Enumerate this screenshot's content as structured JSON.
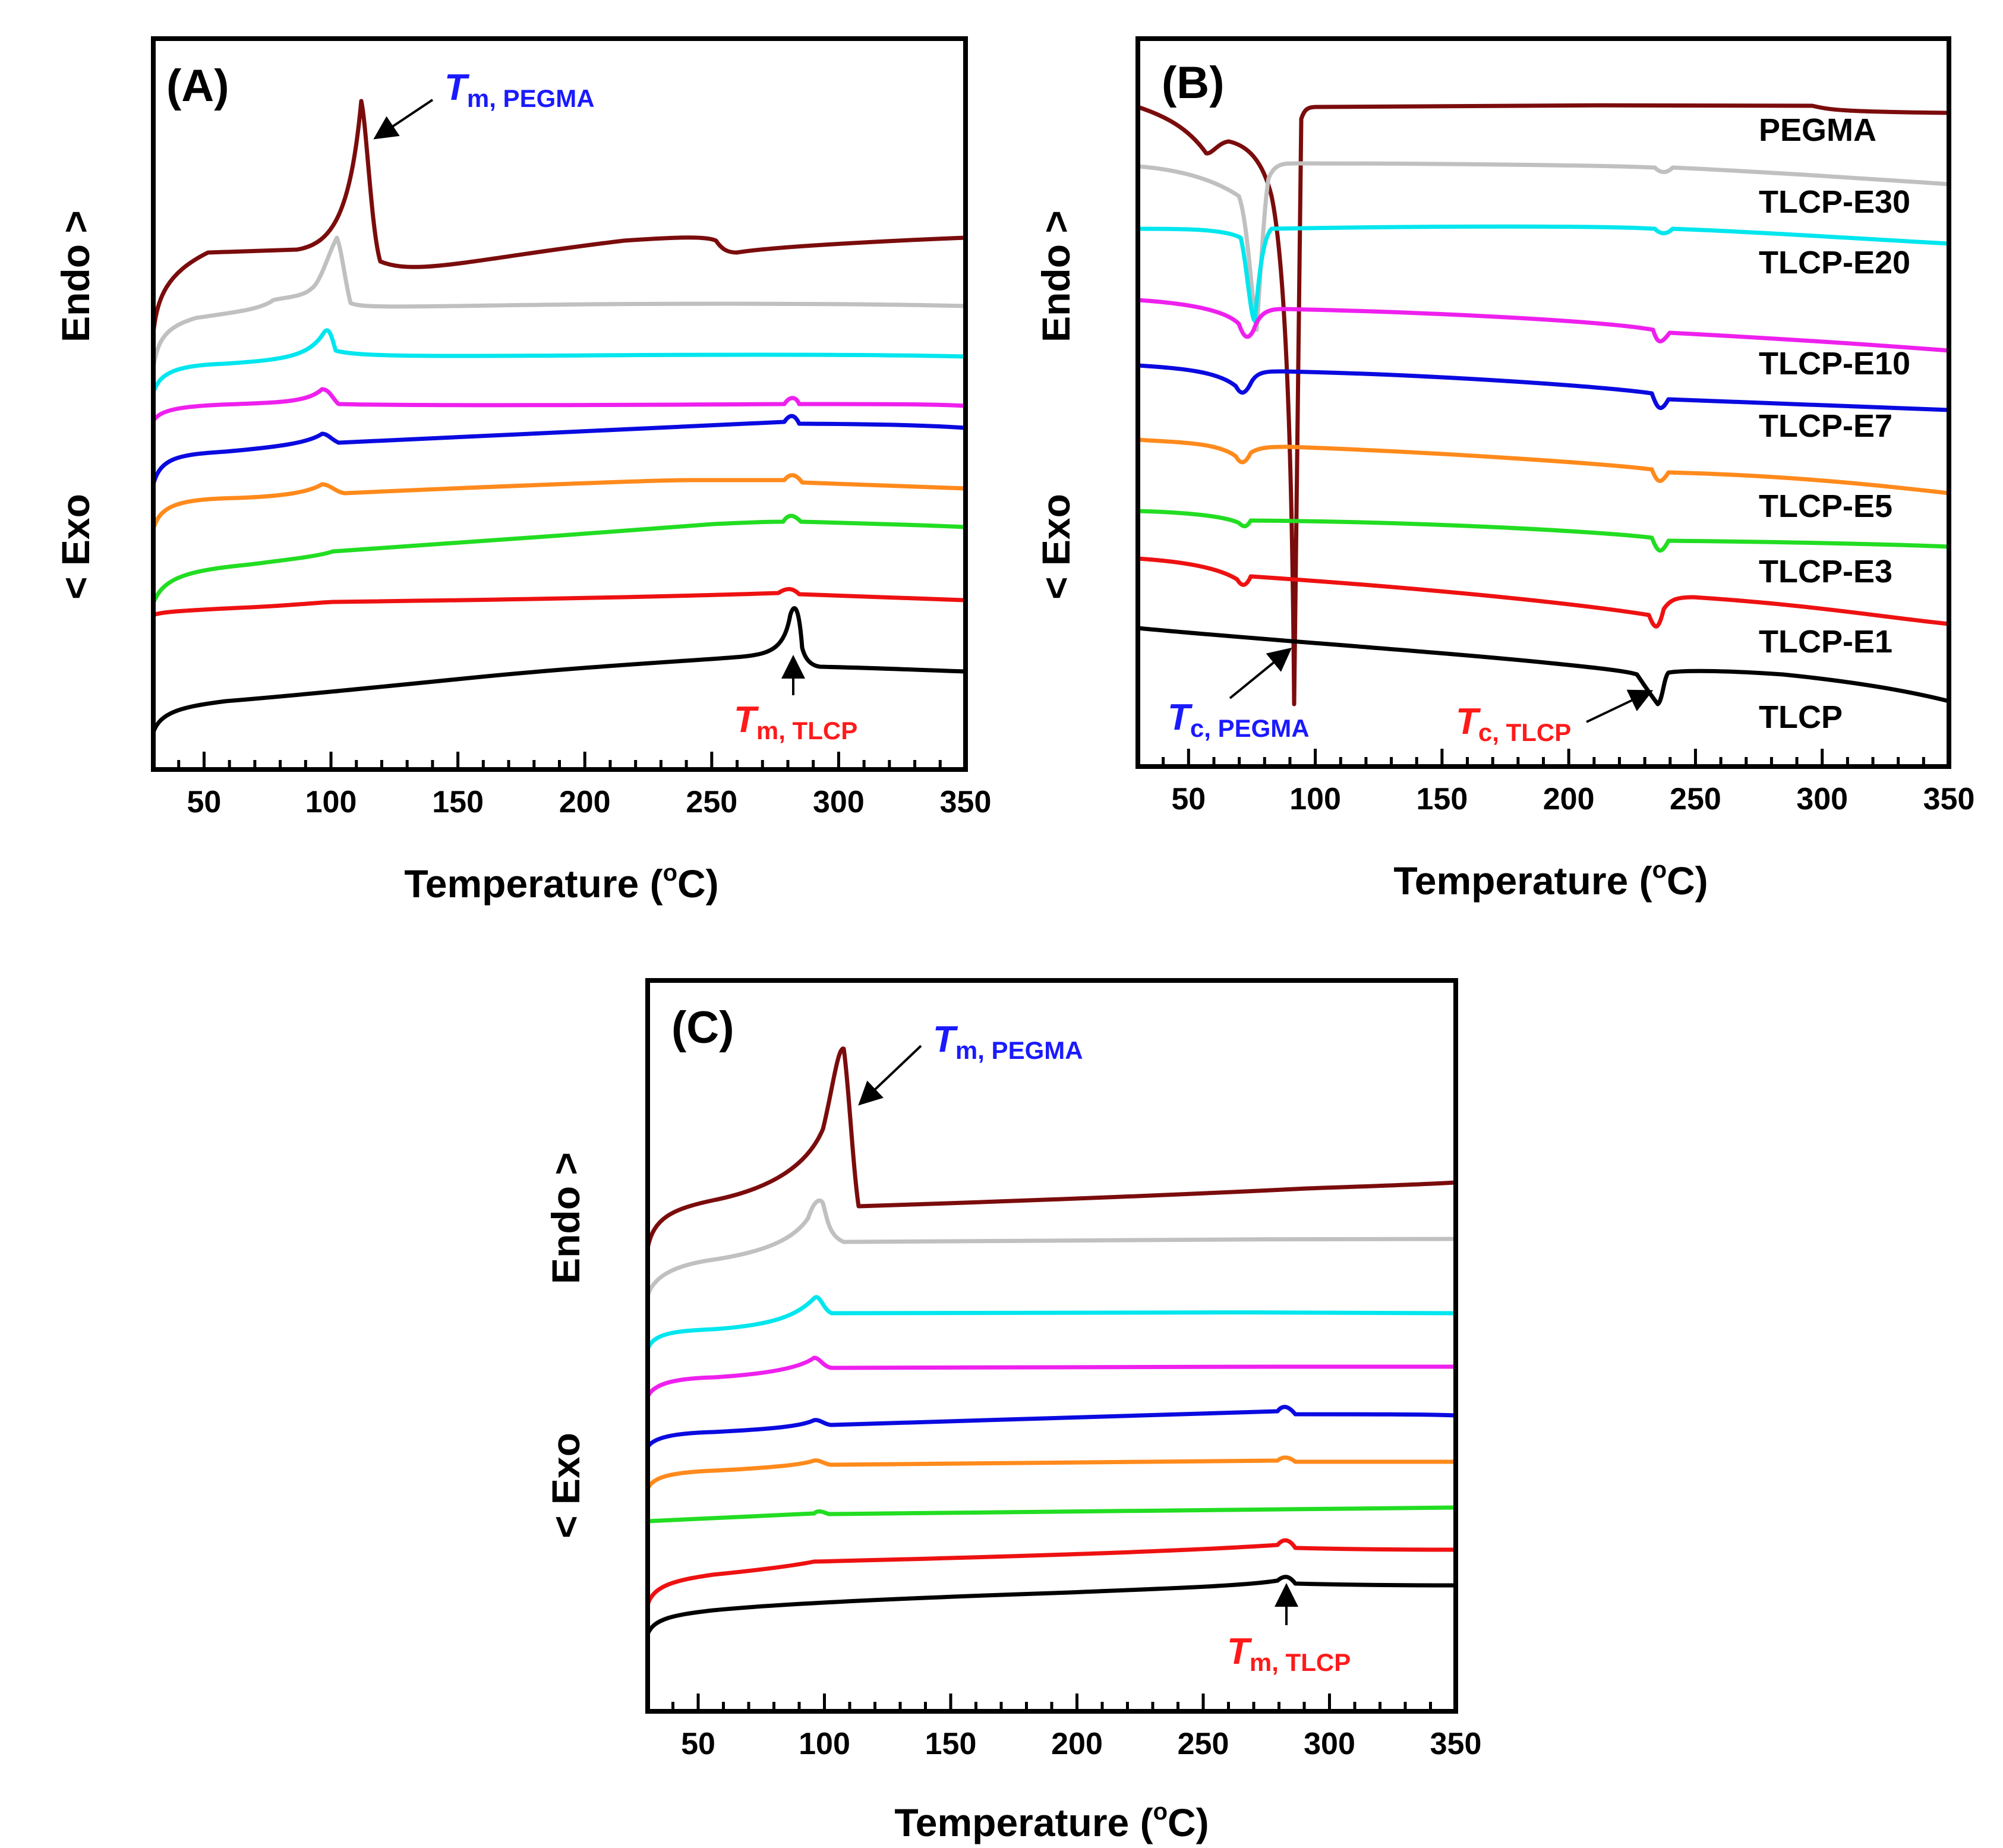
{
  "chart_data": [
    {
      "type": "line",
      "panel_label": "(A)",
      "xlabel_prefix": "Temperature (",
      "xlabel_sup": "o",
      "xlabel_suffix": "C)",
      "ylabel_top": "Endo >",
      "ylabel_bottom": "< Exo",
      "xlim": [
        30,
        350
      ],
      "xticks": [
        "50",
        "100",
        "150",
        "200",
        "250",
        "300",
        "350"
      ],
      "series_colors": [
        "#7b0c0c",
        "#c0c0c0",
        "#00e6ee",
        "#ee20ee",
        "#0a0ae0",
        "#ff8a1c",
        "#22dd22",
        "#ee1111",
        "#000000"
      ],
      "series_names": [
        "PEGMA",
        "TLCP-E30",
        "TLCP-E20",
        "TLCP-E10",
        "TLCP-E7",
        "TLCP-E5",
        "TLCP-E3",
        "TLCP-E1",
        "TLCP"
      ],
      "annotations": [
        {
          "main": "T",
          "sub": "m, PEGMA",
          "color": "#1a1aff"
        },
        {
          "main": "T",
          "sub": "m, TLCP",
          "color": "#ff1a1a"
        }
      ]
    },
    {
      "type": "line",
      "panel_label": "(B)",
      "xlabel_prefix": "Temperature (",
      "xlabel_sup": "o",
      "xlabel_suffix": "C)",
      "ylabel_top": "Endo >",
      "ylabel_bottom": "< Exo",
      "xlim": [
        30,
        350
      ],
      "xticks": [
        "50",
        "100",
        "150",
        "200",
        "250",
        "300",
        "350"
      ],
      "series_colors": [
        "#7b0c0c",
        "#c0c0c0",
        "#00e6ee",
        "#ee20ee",
        "#0a0ae0",
        "#ff8a1c",
        "#22dd22",
        "#ee1111",
        "#000000"
      ],
      "legend": [
        "PEGMA",
        "TLCP-E30",
        "TLCP-E20",
        "TLCP-E10",
        "TLCP-E7",
        "TLCP-E5",
        "TLCP-E3",
        "TLCP-E1",
        "TLCP"
      ],
      "annotations": [
        {
          "main": "T",
          "sub": "c, PEGMA",
          "color": "#1a1aff"
        },
        {
          "main": "T",
          "sub": "c, TLCP",
          "color": "#ff1a1a"
        }
      ]
    },
    {
      "type": "line",
      "panel_label": "(C)",
      "xlabel_prefix": "Temperature (",
      "xlabel_sup": "o",
      "xlabel_suffix": "C)",
      "ylabel_top": "Endo >",
      "ylabel_bottom": "< Exo",
      "xlim": [
        30,
        350
      ],
      "xticks": [
        "50",
        "100",
        "150",
        "200",
        "250",
        "300",
        "350"
      ],
      "series_colors": [
        "#7b0c0c",
        "#c0c0c0",
        "#00e6ee",
        "#ee20ee",
        "#0a0ae0",
        "#ff8a1c",
        "#22dd22",
        "#ee1111",
        "#000000"
      ],
      "series_names": [
        "PEGMA",
        "TLCP-E30",
        "TLCP-E20",
        "TLCP-E10",
        "TLCP-E7",
        "TLCP-E5",
        "TLCP-E3",
        "TLCP-E1",
        "TLCP"
      ],
      "annotations": [
        {
          "main": "T",
          "sub": "m, PEGMA",
          "color": "#1a1aff"
        },
        {
          "main": "T",
          "sub": "m, TLCP",
          "color": "#ff1a1a"
        }
      ]
    }
  ]
}
